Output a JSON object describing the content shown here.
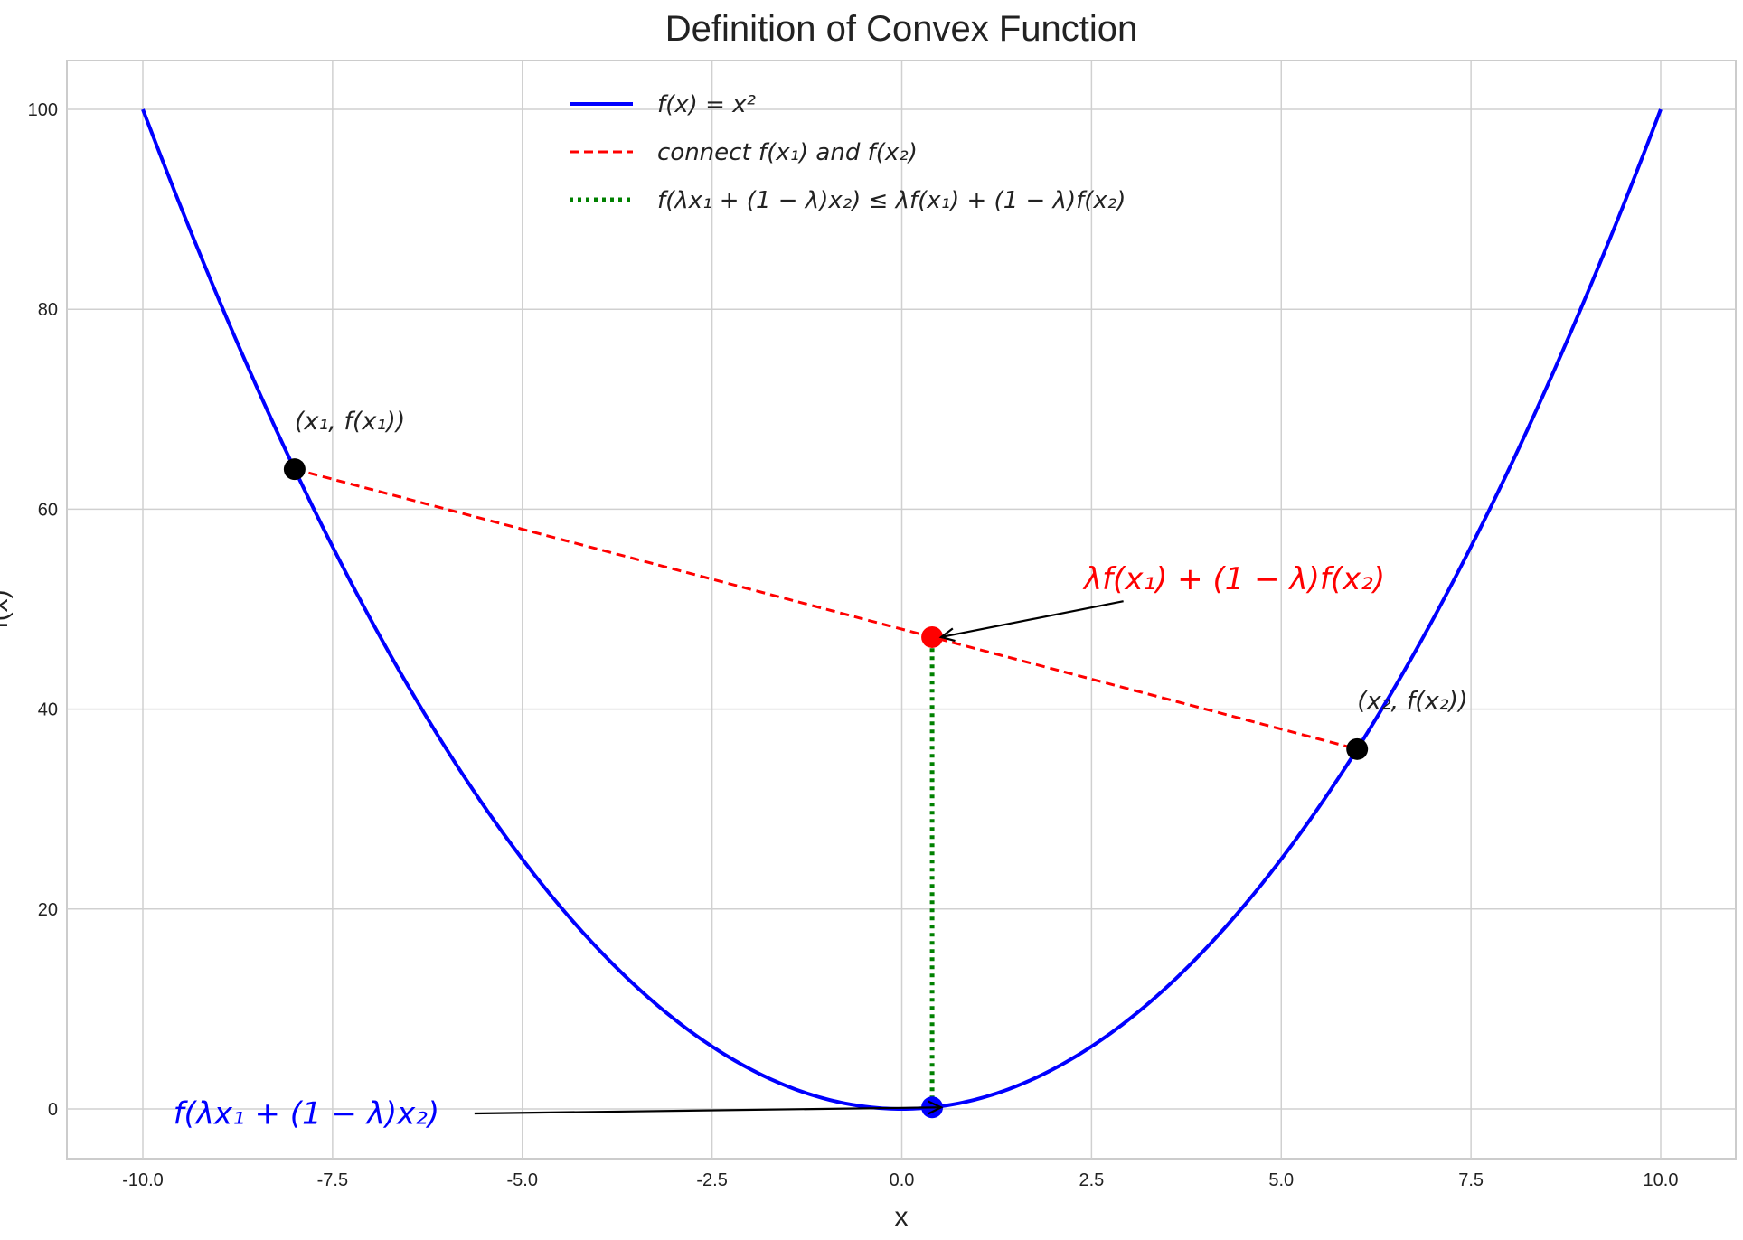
{
  "chart_data": {
    "type": "line",
    "title": "Definition of Convex Function",
    "xlabel": "x",
    "ylabel": "f(x)",
    "xlim": [
      -11,
      11
    ],
    "ylim": [
      -5,
      105
    ],
    "xticks": [
      "-10.0",
      "-7.5",
      "-5.0",
      "-2.5",
      "0.0",
      "2.5",
      "5.0",
      "7.5",
      "10.0"
    ],
    "yticks": [
      "0",
      "20",
      "40",
      "60",
      "80",
      "100"
    ],
    "grid": true,
    "legend_position": "top-center",
    "series": [
      {
        "name": "f(x) = x²",
        "function": "x^2",
        "x_range": [
          -10,
          10
        ],
        "color": "#0000ff",
        "style": "solid"
      },
      {
        "name": "connect f(x₁) and f(x₂)",
        "x": [
          -8,
          6
        ],
        "y": [
          64,
          36
        ],
        "color": "#ff0000",
        "style": "dashed"
      },
      {
        "name": "f(λx₁ + (1 − λ)x₂) ≤ λf(x₁) + (1 − λ)f(x₂)",
        "x": [
          0.4,
          0.4
        ],
        "y": [
          0.16,
          47.2
        ],
        "color": "#008000",
        "style": "dotted"
      }
    ],
    "points": [
      {
        "x": -8,
        "y": 64,
        "color": "#000000"
      },
      {
        "x": 6,
        "y": 36,
        "color": "#000000"
      },
      {
        "x": 0.4,
        "y": 47.2,
        "color": "#ff0000"
      },
      {
        "x": 0.4,
        "y": 0.16,
        "color": "#0000ff"
      }
    ],
    "annotations": [
      {
        "text": "(x₁, f(x₁))",
        "x": -8,
        "y": 68,
        "color": "#222222"
      },
      {
        "text": "(x₂, f(x₂))",
        "x": 6,
        "y": 40,
        "color": "#222222"
      },
      {
        "text": "λf(x₁) + (1 − λ)f(x₂)",
        "x": 2.4,
        "y": 52,
        "color": "#ff0000",
        "arrow_from": [
          2.92,
          50.8
        ],
        "arrow_to": [
          0.4,
          47.2
        ]
      },
      {
        "text": "f(λx₁ + (1 − λ)x₂)",
        "x": -9.6,
        "y": -1.5,
        "color": "#0000ff",
        "arrow_from": [
          -5.63,
          -0.45
        ],
        "arrow_to": [
          0.4,
          0.16
        ]
      }
    ]
  }
}
